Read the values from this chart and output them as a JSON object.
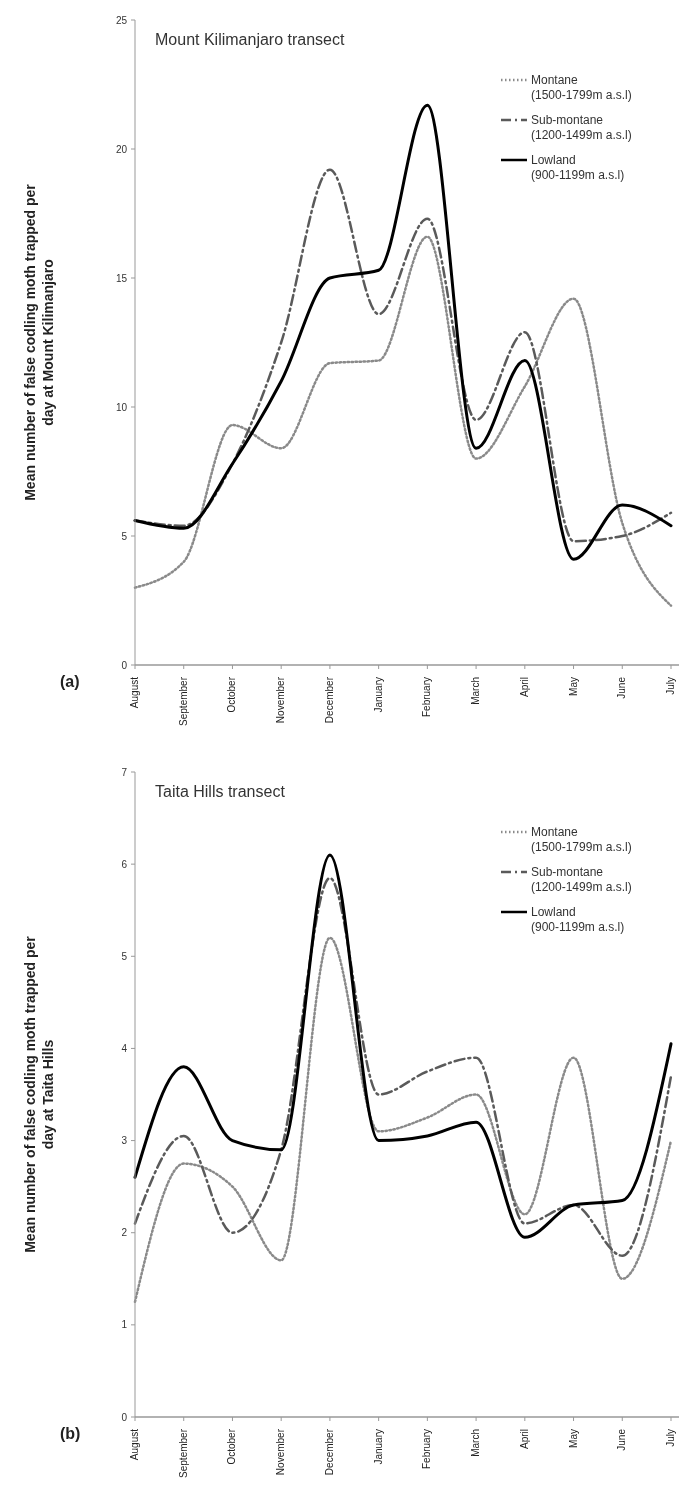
{
  "chart_data": [
    {
      "type": "line",
      "title": "Mount Kilimanjaro transect",
      "ylabel": "Mean number of false codling moth trapped per day at Mount Kilimanjaro",
      "annotations": [
        "(a)"
      ],
      "categories": [
        "August",
        "September",
        "October",
        "November",
        "December",
        "January",
        "February",
        "March",
        "April",
        "May",
        "June",
        "July"
      ],
      "series": [
        {
          "name": "Montane (1500-1799m a.s.l)",
          "color": "#8a8a8a",
          "line_style": "dotted",
          "values": [
            3.0,
            4.0,
            9.3,
            8.4,
            11.7,
            11.8,
            16.6,
            8.0,
            10.8,
            14.2,
            5.5,
            2.3
          ]
        },
        {
          "name": "Sub-montane (1200-1499m a.s.l)",
          "color": "#5a5a5a",
          "line_style": "dashed",
          "values": [
            5.6,
            5.4,
            7.8,
            12.5,
            19.2,
            13.6,
            17.3,
            9.5,
            12.9,
            4.8,
            5.0,
            5.9
          ]
        },
        {
          "name": "Lowland (900-1199m a.s.l)",
          "color": "#000000",
          "line_style": "solid",
          "values": [
            5.6,
            5.3,
            7.8,
            11.0,
            15.0,
            15.3,
            21.7,
            8.4,
            11.8,
            4.1,
            6.2,
            5.4
          ]
        }
      ],
      "ylim": [
        0,
        25
      ],
      "yticks": [
        0,
        5,
        10,
        15,
        20,
        25
      ],
      "legend": "top right"
    },
    {
      "type": "line",
      "title": "Taita Hills transect",
      "ylabel": "Mean number of false codling moth trapped per day at Taita Hills",
      "annotations": [
        "(b)"
      ],
      "categories": [
        "August",
        "September",
        "October",
        "November",
        "December",
        "January",
        "February",
        "March",
        "April",
        "May",
        "June",
        "July"
      ],
      "series": [
        {
          "name": "Montane (1500-1799m a.s.l)",
          "color": "#8a8a8a",
          "line_style": "dotted",
          "values": [
            1.25,
            2.75,
            2.5,
            1.7,
            5.2,
            3.1,
            3.25,
            3.5,
            2.2,
            3.9,
            1.5,
            3.0
          ]
        },
        {
          "name": "Sub-montane (1200-1499m a.s.l)",
          "color": "#5a5a5a",
          "line_style": "dashed",
          "values": [
            2.1,
            3.05,
            2.0,
            2.9,
            5.85,
            3.5,
            3.75,
            3.9,
            2.1,
            2.3,
            1.75,
            3.7
          ]
        },
        {
          "name": "Lowland (900-1199m a.s.l)",
          "color": "#000000",
          "line_style": "solid",
          "values": [
            2.6,
            3.8,
            3.0,
            2.9,
            6.1,
            3.0,
            3.05,
            3.2,
            1.95,
            2.3,
            2.35,
            4.05
          ]
        }
      ],
      "ylim": [
        0,
        7
      ],
      "yticks": [
        0,
        1,
        2,
        3,
        4,
        5,
        6,
        7
      ],
      "legend": "top right"
    }
  ]
}
